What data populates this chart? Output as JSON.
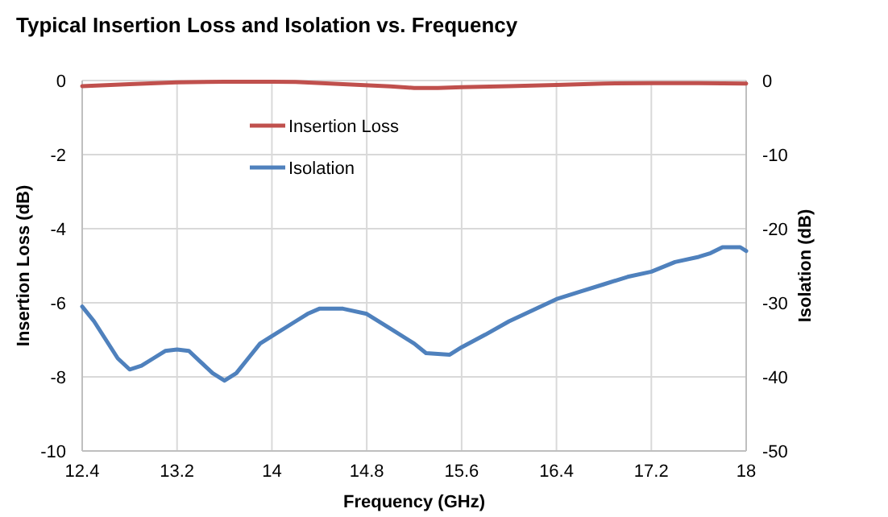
{
  "chart_data": {
    "type": "line",
    "title": "Typical Insertion Loss and Isolation vs. Frequency",
    "xlabel": "Frequency (GHz)",
    "ylabel": "Insertion Loss (dB)",
    "y2label": "Isolation (dB)",
    "xlim": [
      12.4,
      18
    ],
    "xticks": [
      12.4,
      13.2,
      14,
      14.8,
      15.6,
      16.4,
      17.2,
      18
    ],
    "ylim": [
      -10,
      0
    ],
    "yticks": [
      -10,
      -8,
      -6,
      -4,
      -2,
      0
    ],
    "y2lim": [
      -50,
      0
    ],
    "y2ticks": [
      -50,
      -40,
      -30,
      -20,
      -10,
      0
    ],
    "grid": true,
    "legend": "top",
    "line_style": "solid",
    "series": [
      {
        "name": "Insertion Loss",
        "color": "#c0504d",
        "x": [
          12.4,
          12.8,
          13.2,
          13.6,
          14.0,
          14.2,
          14.6,
          15.0,
          15.2,
          15.4,
          15.6,
          16.0,
          16.4,
          16.8,
          17.2,
          17.6,
          18.0
        ],
        "values": [
          -0.15,
          -0.1,
          -0.05,
          -0.03,
          -0.03,
          -0.04,
          -0.1,
          -0.16,
          -0.2,
          -0.2,
          -0.18,
          -0.15,
          -0.12,
          -0.08,
          -0.07,
          -0.07,
          -0.08
        ]
      },
      {
        "name": "Isolation",
        "color": "#4f81bd",
        "axis": "y2",
        "x": [
          12.4,
          12.5,
          12.6,
          12.7,
          12.8,
          12.9,
          13.0,
          13.1,
          13.2,
          13.3,
          13.4,
          13.5,
          13.6,
          13.7,
          13.8,
          13.9,
          14.0,
          14.2,
          14.3,
          14.4,
          14.6,
          14.8,
          15.0,
          15.2,
          15.3,
          15.5,
          15.6,
          15.8,
          16.0,
          16.2,
          16.4,
          16.6,
          16.8,
          17.0,
          17.2,
          17.4,
          17.6,
          17.7,
          17.8,
          17.95,
          18.0
        ],
        "values": [
          -30.5,
          -32.5,
          -35,
          -37.5,
          -39,
          -38.5,
          -37.5,
          -36.5,
          -36.3,
          -36.5,
          -38,
          -39.5,
          -40.5,
          -39.5,
          -37.5,
          -35.5,
          -34.5,
          -32.5,
          -31.5,
          -30.8,
          -30.8,
          -31.5,
          -33.5,
          -35.5,
          -36.8,
          -37,
          -36,
          -34.3,
          -32.5,
          -31,
          -29.5,
          -28.5,
          -27.5,
          -26.5,
          -25.8,
          -24.5,
          -23.8,
          -23.3,
          -22.5,
          -22.5,
          -23
        ]
      }
    ]
  }
}
